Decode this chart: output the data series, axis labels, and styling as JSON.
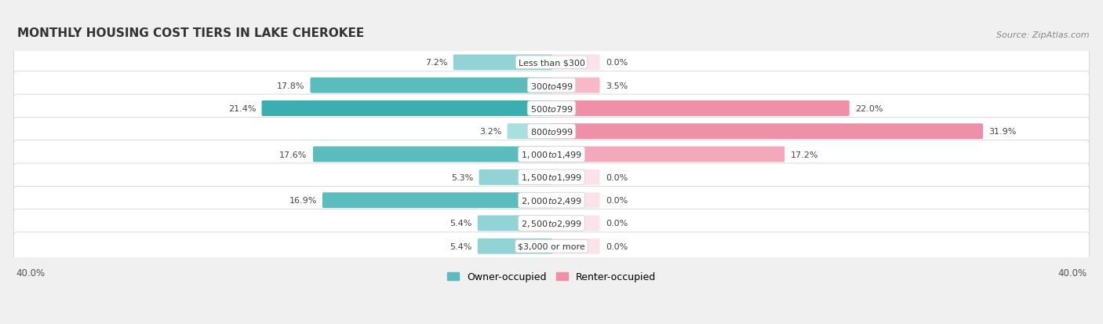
{
  "title": "MONTHLY HOUSING COST TIERS IN LAKE CHEROKEE",
  "source": "Source: ZipAtlas.com",
  "categories": [
    "Less than $300",
    "$300 to $499",
    "$500 to $799",
    "$800 to $999",
    "$1,000 to $1,499",
    "$1,500 to $1,999",
    "$2,000 to $2,499",
    "$2,500 to $2,999",
    "$3,000 or more"
  ],
  "owner_values": [
    7.2,
    17.8,
    21.4,
    3.2,
    17.6,
    5.3,
    16.9,
    5.4,
    5.4
  ],
  "renter_values": [
    0.0,
    3.5,
    22.0,
    31.9,
    17.2,
    0.0,
    0.0,
    0.0,
    0.0
  ],
  "owner_colors": [
    "#92d4d6",
    "#5bbcbe",
    "#3daeb0",
    "#aadfe0",
    "#5bbcbe",
    "#92d4d6",
    "#5bbcbe",
    "#92d4d6",
    "#92d4d6"
  ],
  "renter_colors": [
    "#f9c8d4",
    "#f7b8c8",
    "#f090a8",
    "#f090a8",
    "#f4a8bc",
    "#f9c8d4",
    "#f9c8d4",
    "#f9c8d4",
    "#f9c8d4"
  ],
  "axis_max": 40.0,
  "background_color": "#f0f0f0",
  "row_bg_color": "#ffffff",
  "row_border_color": "#cccccc",
  "title_fontsize": 11,
  "source_fontsize": 8,
  "label_fontsize": 8,
  "value_fontsize": 8,
  "legend_label_owner": "Owner-occupied",
  "legend_label_renter": "Renter-occupied",
  "owner_legend_color": "#5bbcbe",
  "renter_legend_color": "#f090a8"
}
